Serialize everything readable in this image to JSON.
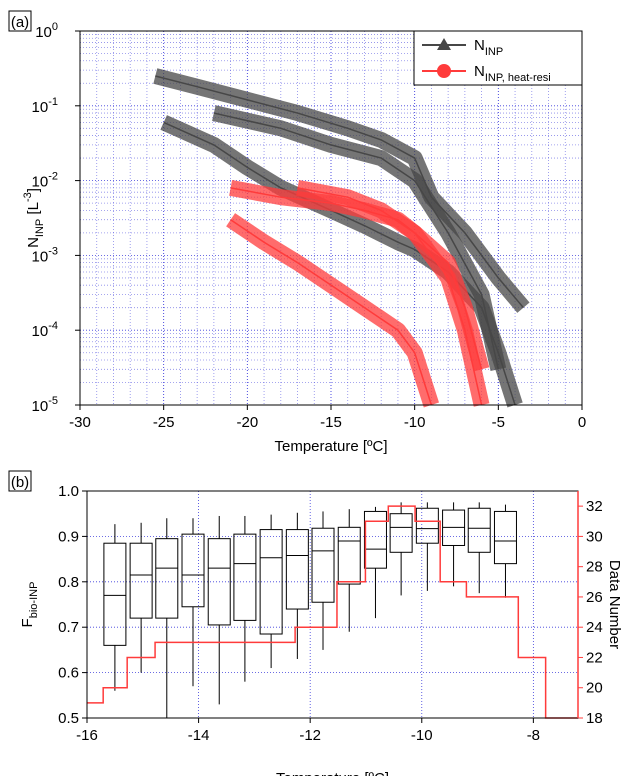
{
  "chart_data": [
    {
      "type": "line",
      "panel_label": "(a)",
      "log_y": true,
      "grid": true,
      "minor_grid": true,
      "legend": "top-right",
      "x_label": "Temperature [ºC]",
      "y_label": {
        "text": "N",
        "sub": "INP",
        "unit": " [L",
        "unit_sup": "-3",
        "unit_end": "]"
      },
      "xlim": [
        -30,
        0
      ],
      "xticks": [
        -30,
        -25,
        -20,
        -15,
        -10,
        -5,
        0
      ],
      "ylim": [
        1e-05,
        1
      ],
      "yticks": [
        {
          "value": 1e-05,
          "label": "10",
          "exponent": "-5"
        },
        {
          "value": 0.0001,
          "label": "10",
          "exponent": "-4"
        },
        {
          "value": 0.001,
          "label": "10",
          "exponent": "-3"
        },
        {
          "value": 0.01,
          "label": "10",
          "exponent": "-2"
        },
        {
          "value": 0.1,
          "label": "10",
          "exponent": "-1"
        },
        {
          "value": 1,
          "label": "10",
          "exponent": "0"
        }
      ],
      "series": [
        {
          "name": "N",
          "sub": "INP",
          "marker": "triangle",
          "color": "#474747",
          "curves": [
            {
              "x": [
                -25.5,
                -23,
                -20,
                -17,
                -14,
                -12,
                -10,
                -9,
                -7,
                -5,
                -3.5
              ],
              "values": [
                0.25,
                0.18,
                0.12,
                0.08,
                0.05,
                0.035,
                0.02,
                0.006,
                0.002,
                0.0005,
                0.0002
              ]
            },
            {
              "x": [
                -22,
                -18,
                -15,
                -12,
                -10,
                -8,
                -6,
                -5
              ],
              "values": [
                0.08,
                0.05,
                0.03,
                0.02,
                0.01,
                0.002,
                0.0003,
                3e-05
              ]
            },
            {
              "x": [
                -25,
                -22,
                -20,
                -18,
                -15,
                -13,
                -11,
                -10,
                -8,
                -6,
                -5,
                -4
              ],
              "values": [
                0.06,
                0.03,
                0.015,
                0.008,
                0.004,
                0.0025,
                0.0015,
                0.0012,
                0.0006,
                0.0002,
                5e-05,
                1e-05
              ]
            }
          ]
        },
        {
          "name": "N",
          "sub": "INP, heat-resi",
          "marker": "circle",
          "color": "#ff3b3b",
          "curves": [
            {
              "x": [
                -21,
                -18,
                -15,
                -13,
                -11,
                -10,
                -8,
                -7,
                -6
              ],
              "values": [
                0.008,
                0.006,
                0.005,
                0.004,
                0.003,
                0.002,
                0.0008,
                0.0002,
                3e-05
              ]
            },
            {
              "x": [
                -17,
                -14,
                -12,
                -10,
                -8,
                -7,
                -6
              ],
              "values": [
                0.008,
                0.006,
                0.004,
                0.002,
                0.0005,
                0.0001,
                1e-05
              ]
            },
            {
              "x": [
                -21,
                -19,
                -17,
                -15,
                -13,
                -11,
                -10,
                -9
              ],
              "values": [
                0.003,
                0.0015,
                0.0008,
                0.0004,
                0.0002,
                0.0001,
                5e-05,
                1e-05
              ]
            }
          ]
        }
      ]
    },
    {
      "type": "box",
      "panel_label": "(b)",
      "grid": true,
      "minor_grid": false,
      "x_label": "Temperature [ºC]",
      "y_label": {
        "text": "F",
        "sub": "bio-INP"
      },
      "y2_label": "Data Number",
      "xlim": [
        -16,
        -7.2
      ],
      "xticks": [
        -16,
        -14,
        -12,
        -10,
        -8
      ],
      "ylim": [
        0.5,
        1
      ],
      "yticks": [
        0.5,
        0.6,
        0.7,
        0.8,
        0.9,
        {
          "value": 1,
          "label": "1.0"
        }
      ],
      "y2lim": [
        18,
        33
      ],
      "y2ticks": [
        18,
        20,
        22,
        24,
        26,
        28,
        30,
        32
      ],
      "y2_color": "#ff3b3b",
      "series": [
        {
          "type": "box",
          "color": "#000000",
          "x": [
            -15.5,
            -15.03,
            -14.57,
            -14.1,
            -13.63,
            -13.17,
            -12.7,
            -12.23,
            -11.77,
            -11.3,
            -10.83,
            -10.37,
            -9.9,
            -9.43,
            -8.97,
            -8.5
          ],
          "whislo": [
            0.56,
            0.6,
            0.5,
            0.57,
            0.53,
            0.58,
            0.61,
            0.63,
            0.65,
            0.69,
            0.72,
            0.77,
            0.78,
            0.79,
            0.775,
            0.765
          ],
          "q1": [
            0.66,
            0.72,
            0.72,
            0.745,
            0.705,
            0.715,
            0.685,
            0.74,
            0.755,
            0.795,
            0.83,
            0.865,
            0.885,
            0.88,
            0.865,
            0.84
          ],
          "median": [
            0.77,
            0.815,
            0.83,
            0.815,
            0.83,
            0.84,
            0.853,
            0.858,
            0.868,
            0.89,
            0.872,
            0.92,
            0.917,
            0.92,
            0.918,
            0.89
          ],
          "q3": [
            0.885,
            0.885,
            0.895,
            0.905,
            0.895,
            0.905,
            0.915,
            0.915,
            0.918,
            0.92,
            0.955,
            0.95,
            0.962,
            0.958,
            0.962,
            0.955
          ],
          "whishi": [
            0.927,
            0.93,
            0.94,
            0.94,
            0.945,
            0.945,
            0.948,
            0.952,
            0.955,
            0.96,
            0.965,
            0.975,
            0.975,
            0.975,
            0.975,
            0.97
          ]
        },
        {
          "type": "step",
          "axis": "y2",
          "color": "#ff3b3b",
          "x": [
            -16,
            -15.71,
            -15.28,
            -14.78,
            -12.27,
            -11.52,
            -11.01,
            -10.6,
            -10.12,
            -9.67,
            -9.2,
            -8.27,
            -7.78
          ],
          "values": [
            19,
            20,
            22,
            23,
            24,
            27,
            31,
            32,
            31,
            27,
            26,
            22,
            18
          ]
        }
      ]
    }
  ]
}
